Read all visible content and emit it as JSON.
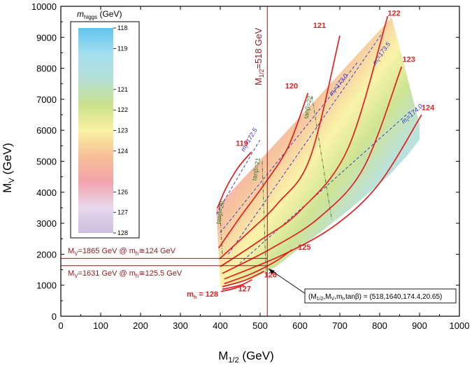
{
  "chart_data": {
    "type": "heatmap",
    "title": "",
    "xlabel": "M",
    "xlabel_sub": "1/2",
    "xlabel_unit": " (GeV)",
    "ylabel": "M",
    "ylabel_sub": "V",
    "ylabel_unit": " (GeV)",
    "xlim": [
      0,
      1000
    ],
    "ylim": [
      0,
      10000
    ],
    "xticks": [
      0,
      100,
      200,
      300,
      400,
      500,
      600,
      700,
      800,
      900,
      1000
    ],
    "yticks": [
      0,
      1000,
      2000,
      3000,
      4000,
      5000,
      6000,
      7000,
      8000,
      9000,
      10000
    ],
    "colorbar": {
      "title": "m",
      "title_sub": "higgs",
      "title_unit": " (GeV)",
      "ticks": [
        "118",
        "119",
        "121",
        "122",
        "123",
        "124",
        "126",
        "127",
        "128"
      ],
      "tick_values": [
        118,
        119,
        121,
        122,
        123,
        124,
        126,
        127,
        128
      ],
      "colors": [
        "#cdbfe0",
        "#e8d7ec",
        "#f3a3ab",
        "#f6bf96",
        "#faf2a2",
        "#c9e18b",
        "#b6dfd7",
        "#a3dff0",
        "#62c5ec"
      ],
      "color_range": [
        118,
        128
      ]
    },
    "region": [
      [
        390,
        3500
      ],
      [
        830,
        9650
      ],
      [
        900,
        6200
      ],
      [
        900,
        5700
      ],
      [
        870,
        5200
      ],
      [
        820,
        4500
      ],
      [
        720,
        3400
      ],
      [
        600,
        2200
      ],
      [
        540,
        1600
      ],
      [
        480,
        1200
      ],
      [
        400,
        950
      ]
    ],
    "higgs_contours": [
      {
        "label": "119",
        "value": 119,
        "points": [
          [
            393,
            3500
          ],
          [
            415,
            4150
          ],
          [
            445,
            4800
          ],
          [
            478,
            5300
          ]
        ]
      },
      {
        "label": "120",
        "value": 120,
        "points": [
          [
            396,
            2200
          ],
          [
            450,
            3200
          ],
          [
            510,
            4250
          ],
          [
            570,
            5450
          ],
          [
            620,
            7200
          ]
        ]
      },
      {
        "label": "121",
        "value": 121,
        "points": [
          [
            398,
            1850
          ],
          [
            470,
            2700
          ],
          [
            545,
            3650
          ],
          [
            625,
            5100
          ],
          [
            700,
            9050
          ]
        ]
      },
      {
        "label": "122",
        "value": 122,
        "points": [
          [
            400,
            1600
          ],
          [
            500,
            2450
          ],
          [
            600,
            3400
          ],
          [
            720,
            5400
          ],
          [
            820,
            9680
          ]
        ]
      },
      {
        "label": "123",
        "value": 123,
        "points": [
          [
            405,
            1380
          ],
          [
            530,
            2200
          ],
          [
            650,
            3200
          ],
          [
            760,
            4800
          ],
          [
            855,
            8050
          ]
        ]
      },
      {
        "label": "124",
        "value": 124,
        "points": [
          [
            410,
            1200
          ],
          [
            560,
            2000
          ],
          [
            690,
            2950
          ],
          [
            800,
            4300
          ],
          [
            905,
            6500
          ]
        ]
      },
      {
        "label": "125",
        "value": 125,
        "points": [
          [
            410,
            1050
          ],
          [
            480,
            1380
          ],
          [
            540,
            1780
          ],
          [
            580,
            2150
          ]
        ]
      },
      {
        "label": "126",
        "value": 126,
        "points": [
          [
            405,
            950
          ],
          [
            460,
            1150
          ],
          [
            510,
            1450
          ]
        ]
      },
      {
        "label": "127",
        "value": 127,
        "points": [
          [
            405,
            870
          ],
          [
            450,
            1000
          ],
          [
            480,
            1180
          ]
        ]
      },
      {
        "label": "m",
        "label_sub": "h",
        "label_rest": " = 128",
        "value": 128,
        "points": [
          [
            402,
            800
          ],
          [
            430,
            880
          ],
          [
            460,
            1000
          ]
        ]
      }
    ],
    "top_quark_mass_lines": [
      {
        "label": "m",
        "sub": "t",
        "rest": "=172.5",
        "points": [
          [
            390,
            3300
          ],
          [
            500,
            5700
          ]
        ],
        "label_at": [
          460,
          5300
        ]
      },
      {
        "label": "m",
        "sub": "t",
        "rest": "=173.0",
        "points": [
          [
            400,
            2700
          ],
          [
            745,
            8200
          ]
        ],
        "label_at": [
          680,
          7100
        ]
      },
      {
        "label": "m",
        "sub": "t",
        "rest": "=173.5",
        "points": [
          [
            420,
            2000
          ],
          [
            810,
            9200
          ]
        ],
        "label_at": [
          790,
          8100
        ]
      },
      {
        "label": "m",
        "sub": "t",
        "rest": "=174.0",
        "points": [
          [
            440,
            1600
          ],
          [
            880,
            6650
          ]
        ],
        "label_at": [
          860,
          6200
        ]
      }
    ],
    "tanbeta_lines": [
      {
        "label": "tanβ=20",
        "points": [
          [
            398,
            3700
          ],
          [
            405,
            2000
          ]
        ],
        "label_at": [
          410,
          3700
        ]
      },
      {
        "label": "tanβ=21",
        "points": [
          [
            505,
            5000
          ],
          [
            515,
            1300
          ]
        ],
        "label_at": [
          500,
          5100
        ]
      },
      {
        "label": "tanβ=22",
        "points": [
          [
            630,
            7100
          ],
          [
            680,
            3100
          ]
        ],
        "label_at": [
          630,
          7100
        ]
      }
    ],
    "vertical_line": {
      "x": 518,
      "label": "M",
      "label_sub": "1/2",
      "label_rest": "=518 GeV"
    },
    "horizontal_lines": [
      {
        "y": 1865,
        "label": "M",
        "label_sub": "V",
        "label_rest": "=1865 GeV @ m",
        "label_sub2": "h",
        "label_tail": "≅124 GeV"
      },
      {
        "y": 1631,
        "label": "M",
        "label_sub": "V",
        "label_rest": "=1631 GeV @ m",
        "label_sub2": "h",
        "label_tail": "≅125.5 GeV"
      }
    ],
    "annotation": {
      "text": "(M",
      "sub1": "1/2",
      "mid1": ",M",
      "sub2": "V",
      "mid2": ",m",
      "sub3": "t",
      "mid3": ",tanβ) = (518,1640,174.4,20.65)",
      "point": [
        518,
        1640
      ]
    },
    "colors": {
      "contour": "#e21e1e",
      "contour_label": "#e21e1e",
      "mt_line": "#2a2ad8",
      "tanb_line": "#2c7a2c",
      "ref_lines": "#8b1a1a",
      "axis": "#000000"
    }
  }
}
